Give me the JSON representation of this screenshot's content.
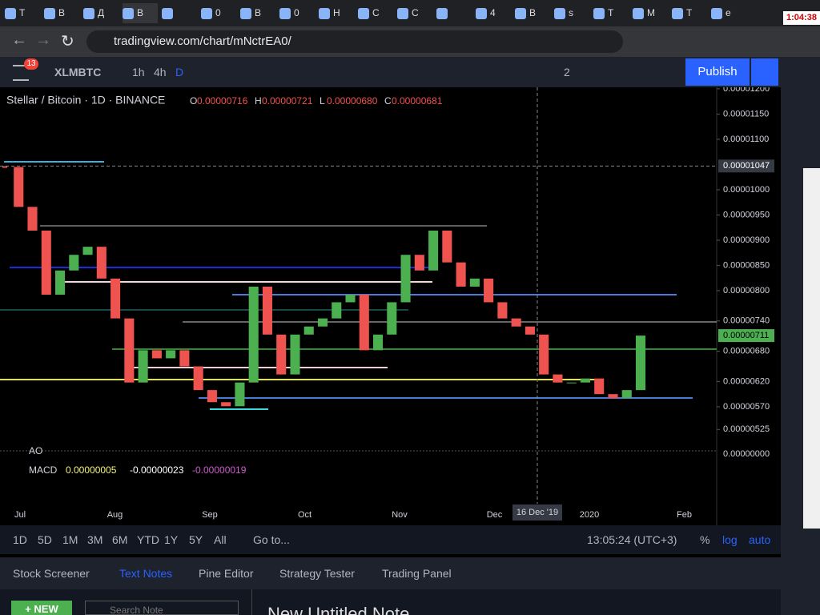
{
  "browser": {
    "tabs": [
      "T",
      "В",
      "Д",
      "В",
      "",
      "0",
      "В",
      "0",
      "Н",
      "С",
      "С",
      "",
      "4",
      "В",
      "s",
      "T",
      "M",
      "T",
      "e"
    ],
    "url": "tradingview.com/chart/mNctrEA0/",
    "clock": "1:04:38"
  },
  "toolbar": {
    "badge": "13",
    "symbol": "XLMBTC",
    "intervals": [
      "1h",
      "4h",
      "D"
    ],
    "layouts": "2",
    "publish": "Publish"
  },
  "chart_data": {
    "type": "candlestick",
    "title": "Stellar / Bitcoin · 1D · BINANCE",
    "ohlc": [
      {
        "key": "O",
        "value": "0.00000716"
      },
      {
        "key": "H",
        "value": "0.00000721"
      },
      {
        "key": "L",
        "value": "0.00000680"
      },
      {
        "key": "C",
        "value": "0.00000681"
      }
    ],
    "closes": [
      1.045e-05,
      9.66e-06,
      9.19e-06,
      7.92e-06,
      8.4e-06,
      8.71e-06,
      8.87e-06,
      8.24e-06,
      7.45e-06,
      6.18e-06,
      6.82e-06,
      6.66e-06,
      6.82e-06,
      6.5e-06,
      6.03e-06,
      5.79e-06,
      5.71e-06,
      6.18e-06,
      8.08e-06,
      7.13e-06,
      6.34e-06,
      7.13e-06,
      7.29e-06,
      7.45e-06,
      7.77e-06,
      7.92e-06,
      6.82e-06,
      7.13e-06,
      7.77e-06,
      8.71e-06,
      8.4e-06,
      9.19e-06,
      8.56e-06,
      8.08e-06,
      8.24e-06,
      7.77e-06,
      7.45e-06,
      7.29e-06,
      7.13e-06,
      6.34e-06,
      6.18e-06,
      6.18e-06,
      6.26e-06,
      5.95e-06,
      5.87e-06,
      6.03e-06,
      7.11e-06
    ],
    "ylim": [
      5.08e-06,
      1.203e-05
    ],
    "yticks": [
      {
        "value": 1.2e-05,
        "label": "0.00001200"
      },
      {
        "value": 1.15e-05,
        "label": "0.00001150"
      },
      {
        "value": 1.1e-05,
        "label": "0.00001100"
      },
      {
        "value": 1e-05,
        "label": "0.00001000"
      },
      {
        "value": 9.5e-06,
        "label": "0.00000950"
      },
      {
        "value": 9e-06,
        "label": "0.00000900"
      },
      {
        "value": 8.5e-06,
        "label": "0.00000850"
      },
      {
        "value": 8e-06,
        "label": "0.00000800"
      },
      {
        "value": 7.4e-06,
        "label": "0.00000740"
      },
      {
        "value": 6.8e-06,
        "label": "0.00000680"
      },
      {
        "value": 6.2e-06,
        "label": "0.00000620"
      },
      {
        "value": 5.7e-06,
        "label": "0.00000570"
      },
      {
        "value": 5.25e-06,
        "label": "0.00000525"
      }
    ],
    "crosshair": {
      "value": 1.047e-05,
      "label": "0.00001047"
    },
    "last_price": {
      "value": 7.11e-06,
      "label": "0.00000711"
    },
    "xlabels": [
      "Jul",
      "Aug",
      "Sep",
      "Oct",
      "Nov",
      "Dec",
      "2020",
      "Feb"
    ],
    "crosshair_date": "16 Dec '19",
    "indicators": {
      "ao": "AO",
      "ao_zero": "0.00000000",
      "macd": "MACD",
      "macd_values": [
        "0.00000005",
        "-0.00000023",
        "-0.00000019"
      ]
    },
    "up_color": "#4caf50",
    "down_color": "#ef5350"
  },
  "range_bar": {
    "ranges": [
      "1D",
      "5D",
      "1M",
      "3M",
      "6M",
      "YTD",
      "1Y",
      "5Y",
      "All"
    ],
    "goto": "Go to...",
    "time": "13:05:24 (UTC+3)",
    "percent": "%",
    "log": "log",
    "auto": "auto"
  },
  "panel": {
    "tabs": [
      "Stock Screener",
      "Text Notes",
      "Pine Editor",
      "Strategy Tester",
      "Trading Panel"
    ],
    "new": "+ NEW",
    "search": "Search Note",
    "note_title": "New Untitled Note"
  }
}
